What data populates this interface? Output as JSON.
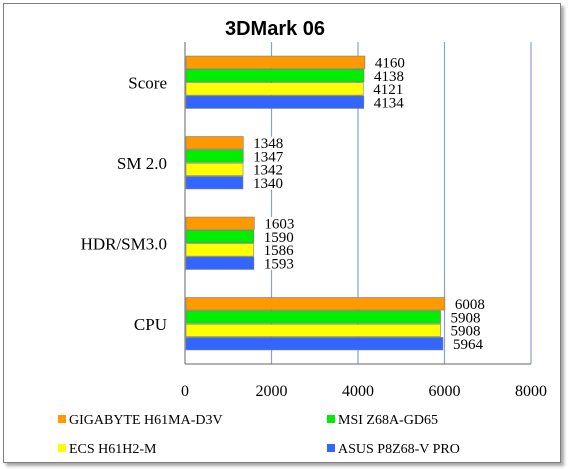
{
  "chart_data": {
    "type": "bar",
    "orientation": "horizontal",
    "title": "3DMark 06",
    "categories": [
      "Score",
      "SM 2.0",
      "HDR/SM3.0",
      "CPU"
    ],
    "series": [
      {
        "name": "GIGABYTE H61MA-D3V",
        "color": "#ff9900",
        "values": [
          4160,
          1348,
          1603,
          6008
        ]
      },
      {
        "name": "MSI Z68A-GD65",
        "color": "#00ee00",
        "values": [
          4138,
          1347,
          1590,
          5908
        ]
      },
      {
        "name": "ECS H61H2-M",
        "color": "#ffff00",
        "values": [
          4121,
          1342,
          1586,
          5908
        ]
      },
      {
        "name": "ASUS P8Z68-V PRO",
        "color": "#3366ff",
        "values": [
          4134,
          1340,
          1593,
          5964
        ]
      }
    ],
    "xlim": [
      0,
      8000
    ],
    "xticks": [
      0,
      2000,
      4000,
      6000,
      8000
    ],
    "grid": true,
    "data_labels": true,
    "legend_position": "bottom"
  }
}
